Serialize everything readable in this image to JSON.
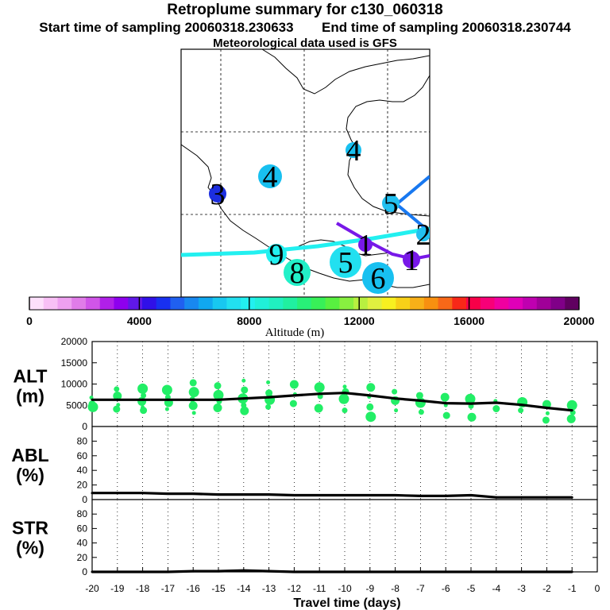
{
  "header": {
    "title": "Retroplume summary for c130_060318",
    "start_label": "Start time of sampling 20060318.230633",
    "end_label": "End time of sampling 20060318.230744",
    "met_label": "Meteorological data used is GFS"
  },
  "map": {
    "labels": [
      {
        "text": "4",
        "color": "#18c0f0"
      },
      {
        "text": "4",
        "color": "#18c0f0"
      },
      {
        "text": "3",
        "color": "#1c2ee0"
      },
      {
        "text": "9",
        "color": "#22f0f0"
      },
      {
        "text": "8",
        "color": "#22f0c8"
      },
      {
        "text": "5",
        "color": "#22e0f0"
      },
      {
        "text": "6",
        "color": "#18c0f0"
      },
      {
        "text": "1",
        "color": "#7818e8"
      },
      {
        "text": "1",
        "color": "#7818e8"
      },
      {
        "text": "5",
        "color": "#22c0f0"
      },
      {
        "text": "2",
        "color": "#22c0f0"
      }
    ]
  },
  "colorbar": {
    "colors": [
      "#fde0fb",
      "#f8c0f5",
      "#eea0f0",
      "#e07ce8",
      "#d055e8",
      "#b020e8",
      "#8e00ee",
      "#6018e8",
      "#3010e8",
      "#1830f0",
      "#2060f0",
      "#1888f0",
      "#10a8f0",
      "#18c8f0",
      "#22e0f0",
      "#22f0f0",
      "#20f0d8",
      "#20f0c0",
      "#20f0a0",
      "#28f078",
      "#38f058",
      "#58f040",
      "#88f040",
      "#b8f040",
      "#e0f040",
      "#f8f020",
      "#f8d018",
      "#f8b018",
      "#f89010",
      "#f86818",
      "#f82818",
      "#f80048",
      "#f80078",
      "#f000a0",
      "#e000b8",
      "#c000b0",
      "#a00098",
      "#800088",
      "#600060"
    ],
    "ticks": [
      "0",
      "4000",
      "8000",
      "12000",
      "16000",
      "20000"
    ],
    "label": "Altitude (m)"
  },
  "chart_data": [
    {
      "type": "line",
      "name": "ALT",
      "ylabel": "ALT\n(m)",
      "ylabel_lines": [
        "ALT",
        "(m)"
      ],
      "ylim": [
        0,
        20000
      ],
      "yticks": [
        "0",
        "5000",
        "10000",
        "15000",
        "20000"
      ],
      "ytick_values": [
        0,
        5000,
        10000,
        15000,
        20000
      ],
      "x": [
        -20,
        -19,
        -18,
        -17,
        -16,
        -15,
        -14,
        -13,
        -12,
        -11,
        -10,
        -9,
        -8,
        -7,
        -6,
        -5,
        -4,
        -3,
        -2,
        -1
      ],
      "series": [
        {
          "name": "mean",
          "values": [
            6300,
            6300,
            6300,
            6300,
            6300,
            6300,
            6600,
            6900,
            7300,
            7700,
            7900,
            7300,
            6600,
            6100,
            5500,
            5400,
            5600,
            5100,
            4400,
            3800
          ]
        }
      ],
      "scatter": [
        {
          "x": -20,
          "y": 6800
        },
        {
          "x": -20,
          "y": 5300
        },
        {
          "x": -20,
          "y": 4600
        },
        {
          "x": -19,
          "y": 8800
        },
        {
          "x": -19,
          "y": 7200
        },
        {
          "x": -19,
          "y": 5100
        },
        {
          "x": -19,
          "y": 4100
        },
        {
          "x": -18,
          "y": 8900
        },
        {
          "x": -18,
          "y": 7300
        },
        {
          "x": -18,
          "y": 5900
        },
        {
          "x": -18,
          "y": 4500
        },
        {
          "x": -18,
          "y": 3800
        },
        {
          "x": -17,
          "y": 8600
        },
        {
          "x": -17,
          "y": 6900
        },
        {
          "x": -17,
          "y": 5600
        },
        {
          "x": -17,
          "y": 4100
        },
        {
          "x": -16,
          "y": 10300
        },
        {
          "x": -16,
          "y": 8100
        },
        {
          "x": -16,
          "y": 6400
        },
        {
          "x": -16,
          "y": 4900
        },
        {
          "x": -16,
          "y": 3200
        },
        {
          "x": -15,
          "y": 9600
        },
        {
          "x": -15,
          "y": 7400
        },
        {
          "x": -15,
          "y": 5900
        },
        {
          "x": -15,
          "y": 4400
        },
        {
          "x": -14,
          "y": 10800
        },
        {
          "x": -14,
          "y": 8600
        },
        {
          "x": -14,
          "y": 6600
        },
        {
          "x": -14,
          "y": 5000
        },
        {
          "x": -14,
          "y": 3700
        },
        {
          "x": -13,
          "y": 10400
        },
        {
          "x": -13,
          "y": 7900
        },
        {
          "x": -13,
          "y": 6300
        },
        {
          "x": -13,
          "y": 4600
        },
        {
          "x": -12,
          "y": 9900
        },
        {
          "x": -12,
          "y": 7600
        },
        {
          "x": -12,
          "y": 5400
        },
        {
          "x": -11,
          "y": 9200
        },
        {
          "x": -11,
          "y": 7100
        },
        {
          "x": -11,
          "y": 4300
        },
        {
          "x": -10,
          "y": 9400
        },
        {
          "x": -10,
          "y": 8200
        },
        {
          "x": -10,
          "y": 6500
        },
        {
          "x": -10,
          "y": 3800
        },
        {
          "x": -9,
          "y": 9200
        },
        {
          "x": -9,
          "y": 7000
        },
        {
          "x": -9,
          "y": 4600
        },
        {
          "x": -9,
          "y": 2300
        },
        {
          "x": -8,
          "y": 8200
        },
        {
          "x": -8,
          "y": 6100
        },
        {
          "x": -8,
          "y": 3800
        },
        {
          "x": -7,
          "y": 7300
        },
        {
          "x": -7,
          "y": 5600
        },
        {
          "x": -7,
          "y": 3400
        },
        {
          "x": -6,
          "y": 6900
        },
        {
          "x": -6,
          "y": 5000
        },
        {
          "x": -6,
          "y": 2600
        },
        {
          "x": -5,
          "y": 6500
        },
        {
          "x": -5,
          "y": 4800
        },
        {
          "x": -5,
          "y": 2200
        },
        {
          "x": -4,
          "y": 6000
        },
        {
          "x": -4,
          "y": 4200
        },
        {
          "x": -3,
          "y": 5700
        },
        {
          "x": -3,
          "y": 3800
        },
        {
          "x": -2,
          "y": 5200
        },
        {
          "x": -2,
          "y": 3100
        },
        {
          "x": -2,
          "y": 1500
        },
        {
          "x": -1,
          "y": 5000
        },
        {
          "x": -1,
          "y": 3300
        },
        {
          "x": -1,
          "y": 1800
        }
      ]
    },
    {
      "type": "line",
      "name": "ABL",
      "ylabel": "ABL\n(%)",
      "ylabel_lines": [
        "ABL",
        "(%)"
      ],
      "ylim": [
        0,
        100
      ],
      "yticks": [
        "0",
        "20",
        "40",
        "60",
        "80"
      ],
      "ytick_values": [
        0,
        20,
        40,
        60,
        80
      ],
      "x": [
        -20,
        -19,
        -18,
        -17,
        -16,
        -15,
        -14,
        -13,
        -12,
        -11,
        -10,
        -9,
        -8,
        -7,
        -6,
        -5,
        -4,
        -3,
        -2,
        -1
      ],
      "series": [
        {
          "name": "ABL",
          "values": [
            9,
            9,
            9,
            8,
            8,
            7,
            7,
            7,
            6,
            6,
            6,
            6,
            6,
            5,
            5,
            6,
            3,
            3,
            3,
            3
          ]
        }
      ]
    },
    {
      "type": "line",
      "name": "STR",
      "ylabel": "STR\n(%)",
      "ylabel_lines": [
        "STR",
        "(%)"
      ],
      "ylim": [
        0,
        100
      ],
      "yticks": [
        "0",
        "20",
        "40",
        "60",
        "80"
      ],
      "ytick_values": [
        0,
        20,
        40,
        60,
        80
      ],
      "x": [
        -20,
        -19,
        -18,
        -17,
        -16,
        -15,
        -14,
        -13,
        -12,
        -11,
        -10,
        -9,
        -8,
        -7,
        -6,
        -5,
        -4,
        -3,
        -2,
        -1
      ],
      "series": [
        {
          "name": "STR",
          "values": [
            0,
            0,
            0,
            0,
            1,
            1,
            2,
            1,
            0,
            0,
            0,
            0,
            0,
            0,
            0,
            0,
            0,
            0,
            0,
            0
          ]
        }
      ],
      "xlabel": "Travel time (days)",
      "xticks": [
        "-20",
        "-19",
        "-18",
        "-17",
        "-16",
        "-15",
        "-14",
        "-13",
        "-12",
        "-11",
        "-10",
        "-9",
        "-8",
        "-7",
        "-6",
        "-5",
        "-4",
        "-3",
        "-2",
        "-1",
        "0"
      ],
      "xtick_values": [
        -20,
        -19,
        -18,
        -17,
        -16,
        -15,
        -14,
        -13,
        -12,
        -11,
        -10,
        -9,
        -8,
        -7,
        -6,
        -5,
        -4,
        -3,
        -2,
        -1,
        0
      ],
      "xlim": [
        -20,
        0
      ]
    }
  ]
}
